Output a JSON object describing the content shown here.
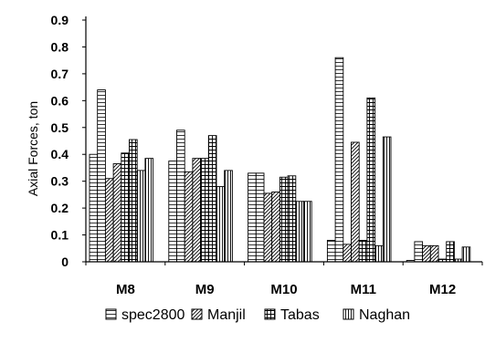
{
  "chart_data": {
    "type": "bar",
    "title": "",
    "xlabel": "",
    "ylabel": "Axial Forces, ton",
    "ylim": [
      0,
      0.9
    ],
    "yticks": [
      "0",
      "0.1",
      "0.2",
      "0.3",
      "0.4",
      "0.5",
      "0.6",
      "0.7",
      "0.8",
      "0.9"
    ],
    "grid": false,
    "legend_position": "bottom",
    "categories": [
      "M8",
      "M9",
      "M10",
      "M11",
      "M12"
    ],
    "bars_per_series_per_category": 2,
    "series": [
      {
        "name": "spec2800",
        "pattern": "horizontal-lines",
        "values": [
          [
            0.4,
            0.64
          ],
          [
            0.375,
            0.49
          ],
          [
            0.33,
            0.33
          ],
          [
            0.08,
            0.76
          ],
          [
            0.005,
            0.075
          ]
        ]
      },
      {
        "name": "Manjil",
        "pattern": "diagonal-lines",
        "values": [
          [
            0.31,
            0.365
          ],
          [
            0.335,
            0.385
          ],
          [
            0.255,
            0.26
          ],
          [
            0.065,
            0.445
          ],
          [
            0.06,
            0.06
          ]
        ]
      },
      {
        "name": "Tabas",
        "pattern": "grid",
        "values": [
          [
            0.405,
            0.455
          ],
          [
            0.385,
            0.47
          ],
          [
            0.315,
            0.32
          ],
          [
            0.08,
            0.61
          ],
          [
            0.01,
            0.075
          ]
        ]
      },
      {
        "name": "Naghan",
        "pattern": "vertical-lines",
        "values": [
          [
            0.34,
            0.385
          ],
          [
            0.28,
            0.34
          ],
          [
            0.225,
            0.225
          ],
          [
            0.06,
            0.465
          ],
          [
            0.01,
            0.055
          ]
        ]
      }
    ]
  }
}
